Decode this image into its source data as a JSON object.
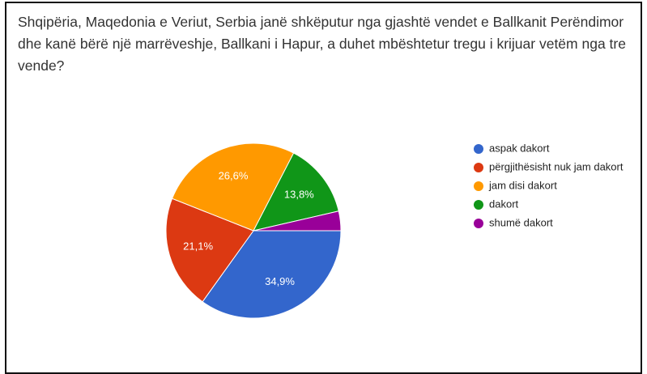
{
  "chart_data": {
    "type": "pie",
    "title": "Shqipëria, Maqedonia e Veriut, Serbia janë shkëputur nga gjashtë vendet  e Ballkanit Perëndimor dhe kanë bërë një marrëveshje, Ballkani i Hapur, a duhet mbështetur tregu i krijuar vetëm nga tre vende?",
    "categories": [
      "aspak dakort",
      "përgjithësisht nuk jam dakort",
      "jam disi dakort",
      "dakort",
      "shumë dakort"
    ],
    "values": [
      34.9,
      21.1,
      26.6,
      13.8,
      3.6
    ],
    "value_labels": [
      "34,9%",
      "21,1%",
      "26,6%",
      "13,8%",
      null
    ],
    "colors": [
      "#3366cc",
      "#dc3912",
      "#ff9900",
      "#109618",
      "#990099"
    ],
    "legend": "right"
  }
}
